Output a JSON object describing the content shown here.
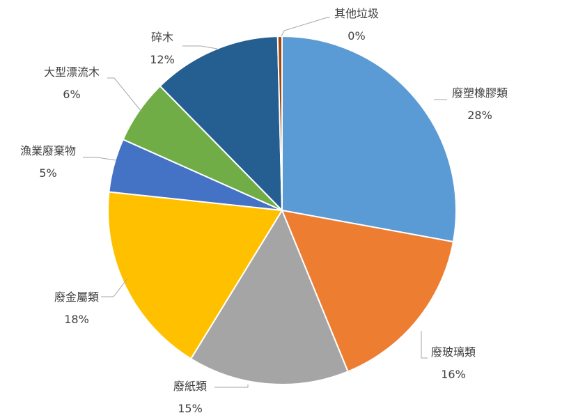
{
  "chart_data": {
    "type": "pie",
    "title": "",
    "slices": [
      {
        "name": "廢塑橡膠類",
        "value": 28,
        "display": "28%",
        "color": "#5b9bd5"
      },
      {
        "name": "廢玻璃類",
        "value": 16,
        "display": "16%",
        "color": "#ed7d31"
      },
      {
        "name": "廢紙類",
        "value": 15,
        "display": "15%",
        "color": "#a5a5a5"
      },
      {
        "name": "廢金屬類",
        "value": 18,
        "display": "18%",
        "color": "#ffc000"
      },
      {
        "name": "漁業廢棄物",
        "value": 5,
        "display": "5%",
        "color": "#4472c4"
      },
      {
        "name": "大型漂流木",
        "value": 6,
        "display": "6%",
        "color": "#70ad47"
      },
      {
        "name": "碎木",
        "value": 12,
        "display": "12%",
        "color": "#255e91"
      },
      {
        "name": "其他垃圾",
        "value": 0.4,
        "display": "0%",
        "color": "#9e480e"
      }
    ],
    "legend": "none"
  }
}
